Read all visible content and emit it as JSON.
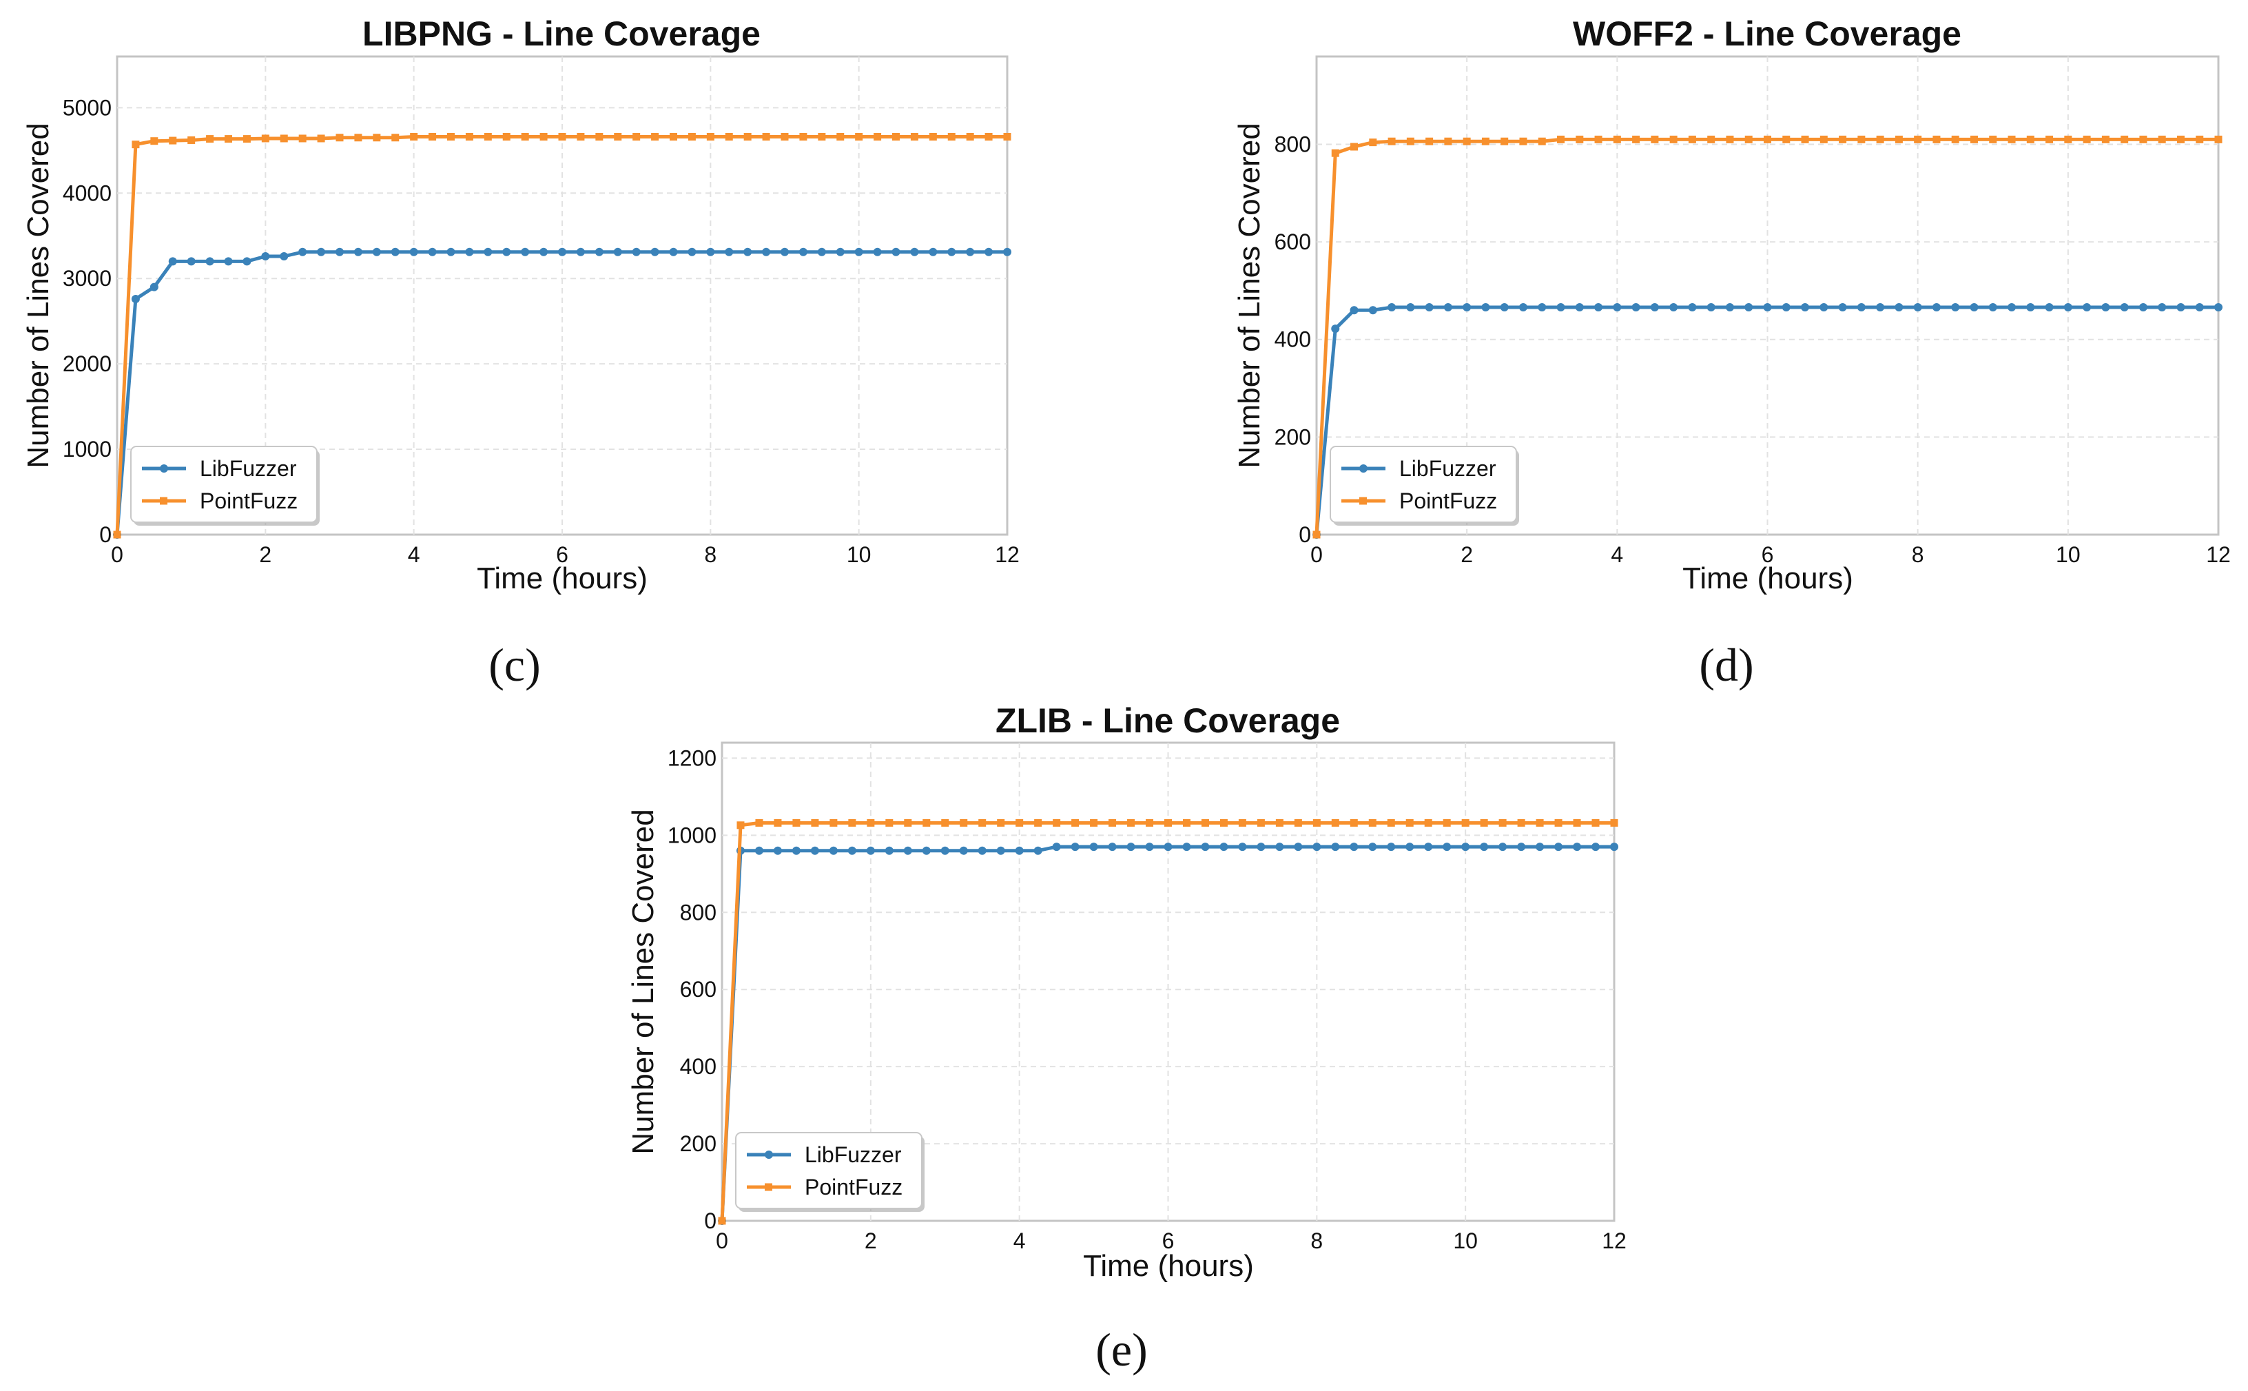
{
  "colors": {
    "libfuzzer": "#3a82b9",
    "pointfuzz": "#f7902d"
  },
  "chart_data": [
    {
      "type": "line",
      "title": "LIBPNG - Line Coverage",
      "caption": "(c)",
      "xlabel": "Time (hours)",
      "ylabel": "Number of Lines Covered",
      "xlim": [
        0,
        12
      ],
      "ylim": [
        0,
        5600
      ],
      "xticks": [
        0,
        2,
        4,
        6,
        8,
        10,
        12
      ],
      "yticks": [
        0,
        1000,
        2000,
        3000,
        4000,
        5000
      ],
      "grid": true,
      "legend": "lower-left",
      "series": [
        {
          "name": "LibFuzzer",
          "color": "#3a82b9",
          "marker": "circle",
          "x": [
            0,
            0.25,
            0.5,
            0.75,
            1.0,
            1.25,
            1.5,
            1.75,
            2.0,
            2.25,
            2.5,
            12
          ],
          "y": [
            0,
            2760,
            2900,
            3200,
            3200,
            3200,
            3200,
            3200,
            3260,
            3260,
            3310,
            3310
          ]
        },
        {
          "name": "PointFuzz",
          "color": "#f7902d",
          "marker": "square",
          "x": [
            0,
            0.25,
            0.5,
            0.75,
            1.0,
            1.25,
            2.0,
            3.0,
            4.0,
            12
          ],
          "y": [
            0,
            4570,
            4610,
            4615,
            4620,
            4635,
            4640,
            4650,
            4660,
            4660
          ]
        }
      ]
    },
    {
      "type": "line",
      "title": "WOFF2 - Line Coverage",
      "caption": "(d)",
      "xlabel": "Time (hours)",
      "ylabel": "Number of Lines Covered",
      "xlim": [
        0,
        12
      ],
      "ylim": [
        0,
        980
      ],
      "xticks": [
        0,
        2,
        4,
        6,
        8,
        10,
        12
      ],
      "yticks": [
        0,
        200,
        400,
        600,
        800
      ],
      "grid": true,
      "legend": "lower-left",
      "series": [
        {
          "name": "LibFuzzer",
          "color": "#3a82b9",
          "marker": "circle",
          "x": [
            0,
            0.25,
            0.5,
            0.75,
            1.0,
            12
          ],
          "y": [
            0,
            422,
            460,
            460,
            466,
            466
          ]
        },
        {
          "name": "PointFuzz",
          "color": "#f7902d",
          "marker": "square",
          "x": [
            0,
            0.25,
            0.5,
            0.75,
            1.0,
            3.25,
            12
          ],
          "y": [
            0,
            782,
            795,
            804,
            806,
            810,
            810
          ]
        }
      ]
    },
    {
      "type": "line",
      "title": "ZLIB - Line Coverage",
      "caption": "(e)",
      "xlabel": "Time (hours)",
      "ylabel": "Number of Lines Covered",
      "xlim": [
        0,
        12
      ],
      "ylim": [
        0,
        1240
      ],
      "xticks": [
        0,
        2,
        4,
        6,
        8,
        10,
        12
      ],
      "yticks": [
        0,
        200,
        400,
        600,
        800,
        1000,
        1200
      ],
      "grid": true,
      "legend": "lower-left",
      "series": [
        {
          "name": "LibFuzzer",
          "color": "#3a82b9",
          "marker": "circle",
          "x": [
            0,
            0.25,
            4.25,
            4.5,
            12
          ],
          "y": [
            0,
            960,
            960,
            970,
            970
          ]
        },
        {
          "name": "PointFuzz",
          "color": "#f7902d",
          "marker": "square",
          "x": [
            0,
            0.25,
            0.5,
            12
          ],
          "y": [
            0,
            1026,
            1032,
            1032
          ]
        }
      ]
    }
  ]
}
